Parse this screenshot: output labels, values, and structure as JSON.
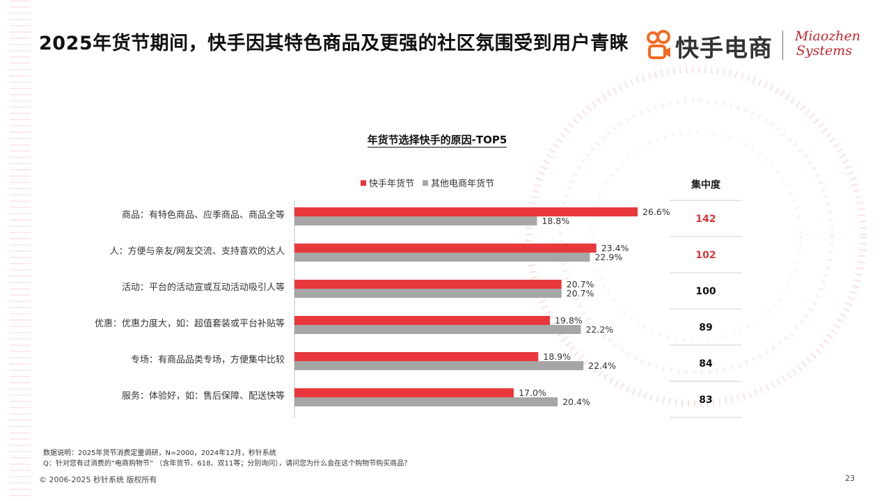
{
  "title": "2025年货节期间，快手因其特色商品及更强的社区氛围受到用户青睐",
  "brand": {
    "name": "快手电商",
    "partner_line1": "Miaozhen",
    "partner_line2": "Systems",
    "icon": "kuaishou-logo-icon"
  },
  "chart_data": {
    "type": "bar",
    "orientation": "horizontal",
    "title": "年货节选择快手的原因-TOP5",
    "categories": [
      "商品：有特色商品、应季商品、商品全等",
      "人：方便与亲友/网友交流、支持喜欢的达人",
      "活动：平台的活动宣或互动活动吸引人等",
      "优惠：优惠力度大，如：超值套装或平台补贴等",
      "专场：有商品品类专场，方便集中比较",
      "服务：体验好，如：售后保障、配送快等"
    ],
    "series": [
      {
        "name": "快手年货节",
        "color": "#e8383d",
        "values": [
          26.6,
          23.4,
          20.7,
          19.8,
          18.9,
          17.0
        ]
      },
      {
        "name": "其他电商年货节",
        "color": "#a6a6a6",
        "values": [
          18.8,
          22.9,
          20.7,
          22.2,
          22.4,
          20.4
        ]
      }
    ],
    "value_suffix": "%",
    "xlim": [
      0,
      30
    ],
    "grid": false,
    "legend": "top-center",
    "concentration": {
      "header": "集中度",
      "values": [
        "142",
        "102",
        "100",
        "89",
        "84",
        "83"
      ],
      "highlight_color": "#d9363e"
    }
  },
  "footnotes": [
    "数据说明：2025年货节消费定量调研，N=2000，2024年12月，秒针系统",
    "Q：针对您有过消费的“电商购物节” （含年货节、618、双11等；分别询问），请问您为什么会在这个购物节购买商品？"
  ],
  "copyright": "© 2006-2025 秒针系统 版权所有",
  "page_number": "23"
}
